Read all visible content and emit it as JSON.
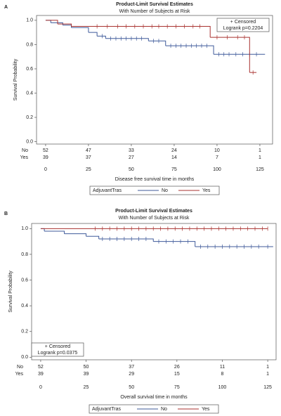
{
  "chart_data": [
    {
      "type": "step",
      "panel": "A",
      "title": "Product-Limit Survival Estimates",
      "subtitle": "With Number of Subjects at Risk",
      "xlabel": "Disease free survival time in months",
      "ylabel": "Survival Probability",
      "xlim": [
        -5.3,
        132.4
      ],
      "ylim": [
        -0.02,
        1.04
      ],
      "xticks": [
        0,
        25,
        50,
        75,
        100,
        125
      ],
      "yticks": [
        {
          "value": 0,
          "label": "0.0"
        },
        {
          "value": 0.2,
          "label": "0.2"
        },
        {
          "value": 0.4,
          "label": "0.4"
        },
        {
          "value": 0.6,
          "label": "0.6"
        },
        {
          "value": 0.8,
          "label": "0.8"
        },
        {
          "value": 1,
          "label": "1.0"
        }
      ],
      "annotation": {
        "censored": "+ Censored",
        "logrank": "Logrank p=0.2204"
      },
      "annotation_corner": "top-right",
      "legend_title": "AdjuvantTras",
      "series": [
        {
          "name": "No",
          "color": "#3f5a9a",
          "x": [
            0,
            3,
            10,
            15,
            25,
            30,
            35,
            60,
            70,
            98,
            128
          ],
          "values": [
            1,
            0.98,
            0.96,
            0.94,
            0.9,
            0.87,
            0.85,
            0.83,
            0.79,
            0.72,
            0.72
          ],
          "censored": [
            33,
            38,
            41,
            44,
            47,
            50,
            53,
            56,
            63,
            66,
            73,
            76,
            79,
            82,
            85,
            88,
            91,
            94,
            101,
            104,
            107,
            111,
            115,
            119,
            123
          ],
          "at_risk": [
            52,
            47,
            33,
            24,
            10,
            1
          ]
        },
        {
          "name": "Yes",
          "color": "#a8312f",
          "x": [
            0,
            7,
            15,
            96,
            119,
            123
          ],
          "values": [
            1,
            0.97,
            0.95,
            0.86,
            0.57,
            0.57
          ],
          "censored": [
            30,
            36,
            42,
            47,
            52,
            57,
            62,
            66,
            71,
            76,
            81,
            86,
            90,
            100,
            106,
            112,
            116,
            121
          ],
          "at_risk": [
            39,
            37,
            27,
            14,
            7,
            1
          ]
        }
      ]
    },
    {
      "type": "step",
      "panel": "B",
      "title": "Product-Limit Survival Estimates",
      "subtitle": "With Number of Subjects at Risk",
      "xlabel": "Overall survival time in months",
      "ylabel": "Survival Probability",
      "xlim": [
        -5,
        129.6
      ],
      "ylim": [
        -0.02,
        1.04
      ],
      "xticks": [
        0,
        25,
        50,
        75,
        100,
        125
      ],
      "yticks": [
        {
          "value": 0,
          "label": "0.0"
        },
        {
          "value": 0.2,
          "label": "0.2"
        },
        {
          "value": 0.4,
          "label": "0.4"
        },
        {
          "value": 0.6,
          "label": "0.6"
        },
        {
          "value": 0.8,
          "label": "0.8"
        },
        {
          "value": 1,
          "label": "1.0"
        }
      ],
      "annotation": {
        "censored": "+ Censored",
        "logrank": "Logrank p=0.0375"
      },
      "annotation_corner": "bottom-left",
      "legend_title": "AdjuvantTras",
      "series": [
        {
          "name": "No",
          "color": "#3f5a9a",
          "x": [
            0,
            2,
            13,
            25,
            32,
            62,
            85,
            128
          ],
          "values": [
            1,
            0.98,
            0.96,
            0.94,
            0.92,
            0.9,
            0.86,
            0.86
          ],
          "censored": [
            34,
            38,
            42,
            46,
            50,
            54,
            58,
            65,
            69,
            73,
            77,
            81,
            88,
            92,
            96,
            100,
            104,
            108,
            112,
            116,
            120,
            125
          ],
          "at_risk": [
            52,
            50,
            37,
            26,
            11,
            1
          ]
        },
        {
          "name": "Yes",
          "color": "#a8312f",
          "x": [
            0,
            125
          ],
          "values": [
            1,
            1
          ],
          "censored": [
            30,
            34,
            38,
            42,
            46,
            50,
            54,
            58,
            62,
            66,
            70,
            74,
            78,
            82,
            86,
            90,
            94,
            98,
            102,
            106,
            110,
            114,
            118,
            122,
            125
          ],
          "at_risk": [
            39,
            39,
            29,
            15,
            8,
            1
          ]
        }
      ]
    }
  ]
}
